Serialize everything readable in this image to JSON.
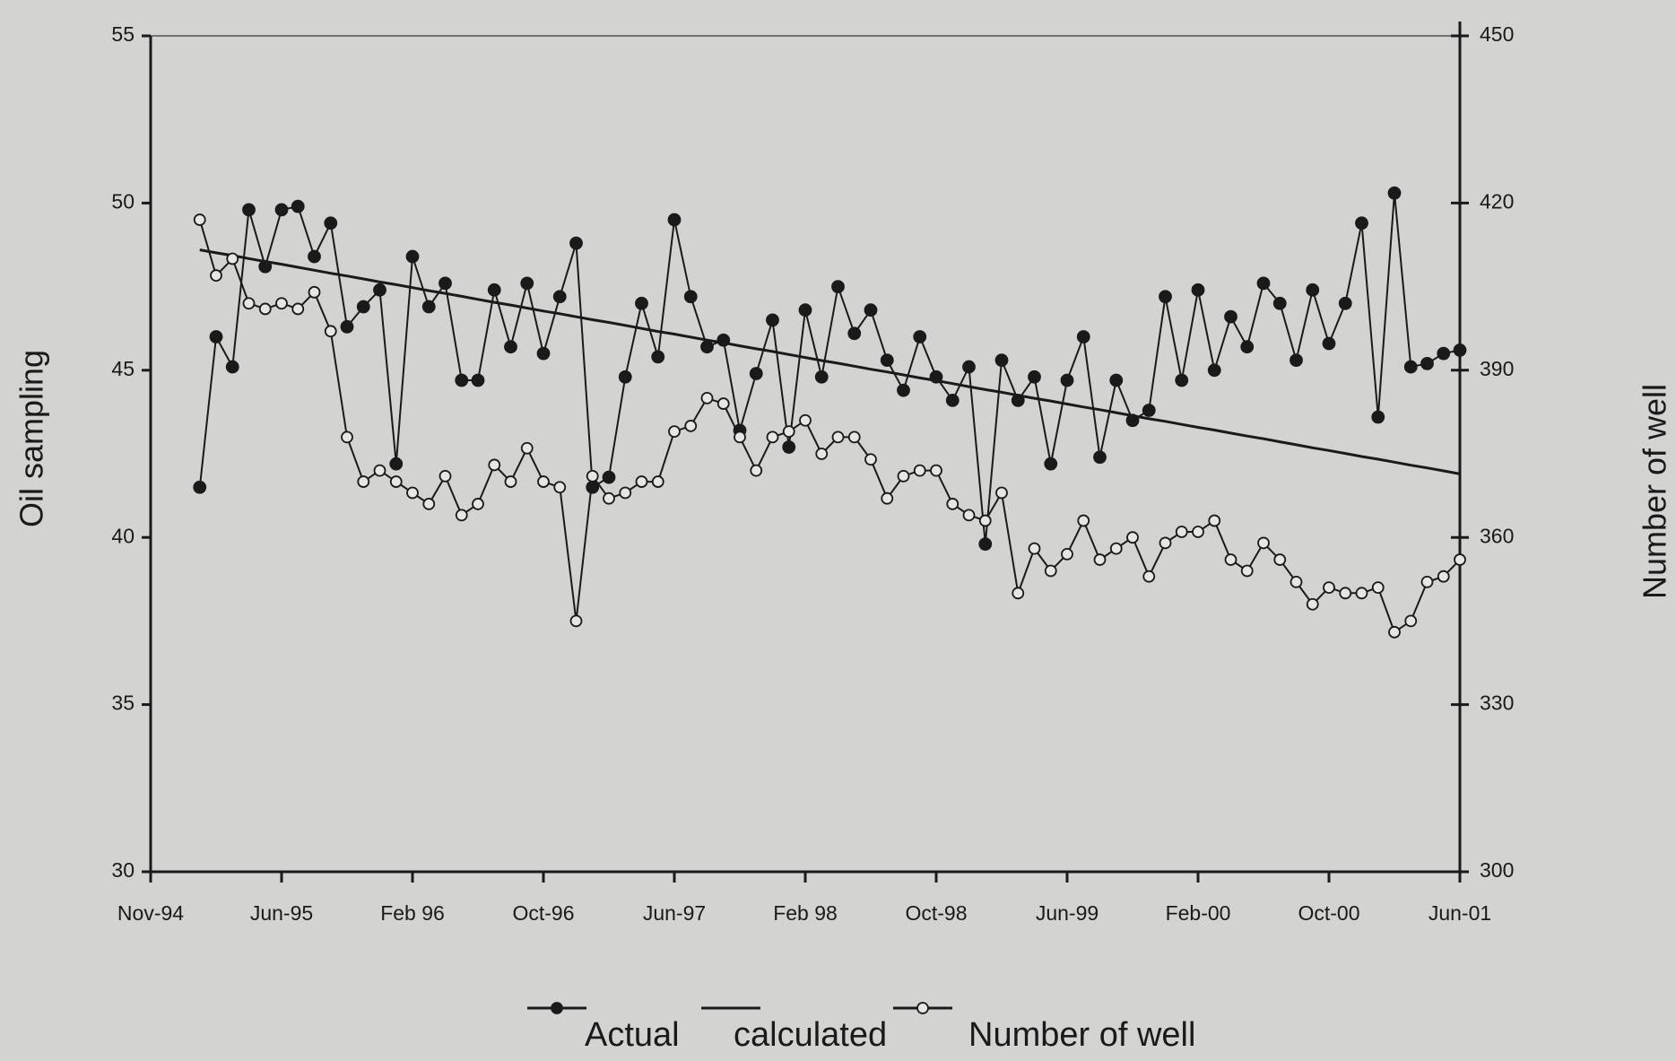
{
  "chart_data": {
    "type": "line",
    "y_label": "Oil sampling",
    "y2_label": "Number of well",
    "categories": [
      "Nov-94",
      null,
      null,
      null,
      null,
      null,
      null,
      null,
      "Jun-95",
      null,
      null,
      null,
      null,
      null,
      null,
      null,
      "Feb 96",
      null,
      null,
      null,
      null,
      null,
      null,
      null,
      "Oct-96",
      null,
      null,
      null,
      null,
      null,
      null,
      null,
      "Jun-97",
      null,
      null,
      null,
      null,
      null,
      null,
      null,
      "Feb 98",
      null,
      null,
      null,
      null,
      null,
      null,
      null,
      "Oct-98",
      null,
      null,
      null,
      null,
      null,
      null,
      null,
      "Jun-99",
      null,
      null,
      null,
      null,
      null,
      null,
      null,
      "Feb-00",
      null,
      null,
      null,
      null,
      null,
      null,
      null,
      "Oct-00",
      null,
      null,
      null,
      null,
      null,
      null,
      null,
      "Jun-01"
    ],
    "ylim": [
      30,
      55
    ],
    "yticks": [
      30,
      35,
      40,
      45,
      50,
      55
    ],
    "y2lim": [
      300,
      450
    ],
    "y2ticks": [
      300,
      330,
      360,
      390,
      420,
      450
    ],
    "series": [
      {
        "name": "Actual",
        "color": "#1a1a1a",
        "marker": "filled",
        "values": [
          null,
          null,
          null,
          41.5,
          46.0,
          45.1,
          49.8,
          48.1,
          49.8,
          49.9,
          48.4,
          49.4,
          46.3,
          46.9,
          47.4,
          42.2,
          48.4,
          46.9,
          47.6,
          44.7,
          44.7,
          47.4,
          45.7,
          47.6,
          45.5,
          47.2,
          48.8,
          41.5,
          41.8,
          44.8,
          47.0,
          45.4,
          49.5,
          47.2,
          45.7,
          45.9,
          43.2,
          44.9,
          46.5,
          42.7,
          46.8,
          44.8,
          47.5,
          46.1,
          46.8,
          45.3,
          44.4,
          46.0,
          44.8,
          44.1,
          45.1,
          39.8,
          45.3,
          44.1,
          44.8,
          42.2,
          44.7,
          46.0,
          42.4,
          44.7,
          43.5,
          43.8,
          47.2,
          44.7,
          47.4,
          45.0,
          46.6,
          45.7,
          47.6,
          47.0,
          45.3,
          47.4,
          45.8,
          47.0,
          49.4,
          43.6,
          50.3,
          45.1,
          45.2,
          45.5,
          45.6
        ]
      },
      {
        "name": "calculated",
        "color": "#1a1a1a",
        "marker": "none",
        "values": [
          null,
          null,
          null,
          48.6,
          48.51,
          48.43,
          48.34,
          48.25,
          48.17,
          48.08,
          47.99,
          47.9,
          47.82,
          47.73,
          47.64,
          47.56,
          47.47,
          47.38,
          47.3,
          47.21,
          47.12,
          47.03,
          46.95,
          46.86,
          46.77,
          46.69,
          46.6,
          46.51,
          46.43,
          46.34,
          46.25,
          46.16,
          46.08,
          45.99,
          45.9,
          45.82,
          45.73,
          45.64,
          45.56,
          45.47,
          45.38,
          45.29,
          45.21,
          45.12,
          45.03,
          44.95,
          44.86,
          44.77,
          44.69,
          44.6,
          44.51,
          44.42,
          44.34,
          44.25,
          44.16,
          44.08,
          43.99,
          43.9,
          43.82,
          43.73,
          43.64,
          43.55,
          43.47,
          43.38,
          43.29,
          43.21,
          43.12,
          43.03,
          42.95,
          42.86,
          42.77,
          42.68,
          42.6,
          42.51,
          42.42,
          42.34,
          42.25,
          42.16,
          42.08,
          41.99,
          41.9
        ]
      },
      {
        "name": "Number of well",
        "color": "#1a1a1a",
        "marker": "open",
        "axis": "y2",
        "values": [
          null,
          null,
          null,
          417,
          407,
          410,
          402,
          401,
          402,
          401,
          404,
          397,
          378,
          370,
          372,
          370,
          368,
          366,
          371,
          364,
          366,
          373,
          370,
          376,
          370,
          369,
          345,
          371,
          367,
          368,
          370,
          370,
          379,
          380,
          385,
          384,
          378,
          372,
          378,
          379,
          381,
          375,
          378,
          378,
          374,
          367,
          371,
          372,
          372,
          366,
          364,
          363,
          368,
          350,
          358,
          354,
          357,
          363,
          356,
          358,
          360,
          353,
          359,
          361,
          361,
          363,
          356,
          354,
          359,
          356,
          352,
          348,
          351,
          350,
          350,
          351,
          343,
          345,
          352,
          353,
          356
        ]
      }
    ]
  }
}
